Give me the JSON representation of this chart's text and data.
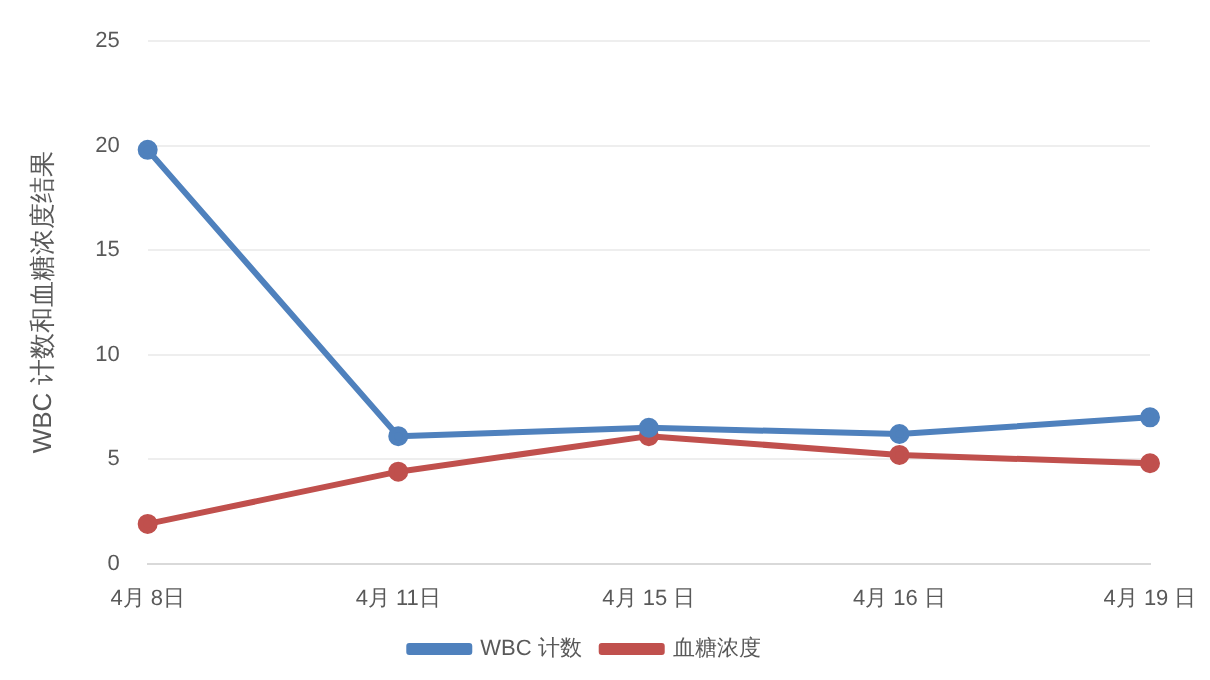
{
  "chart_data": {
    "type": "line",
    "ylabel": "WBC 计数和血糖浓度结果",
    "categories": [
      "4月 8日",
      "4月 11日",
      "4月 15 日",
      "4月 16 日",
      "4月 19 日"
    ],
    "series": [
      {
        "name": "WBC 计数",
        "color": "#4f81bd",
        "values": [
          19.8,
          6.1,
          6.5,
          6.2,
          7.0
        ]
      },
      {
        "name": "血糖浓度",
        "color": "#c0504d",
        "values": [
          1.9,
          4.4,
          6.1,
          5.2,
          4.8
        ]
      }
    ],
    "ylim": [
      0,
      25
    ],
    "yticks": [
      0,
      5,
      10,
      15,
      20,
      25
    ],
    "grid": "y",
    "legend": "bottom",
    "marker": "circle",
    "line_style": "solid"
  }
}
